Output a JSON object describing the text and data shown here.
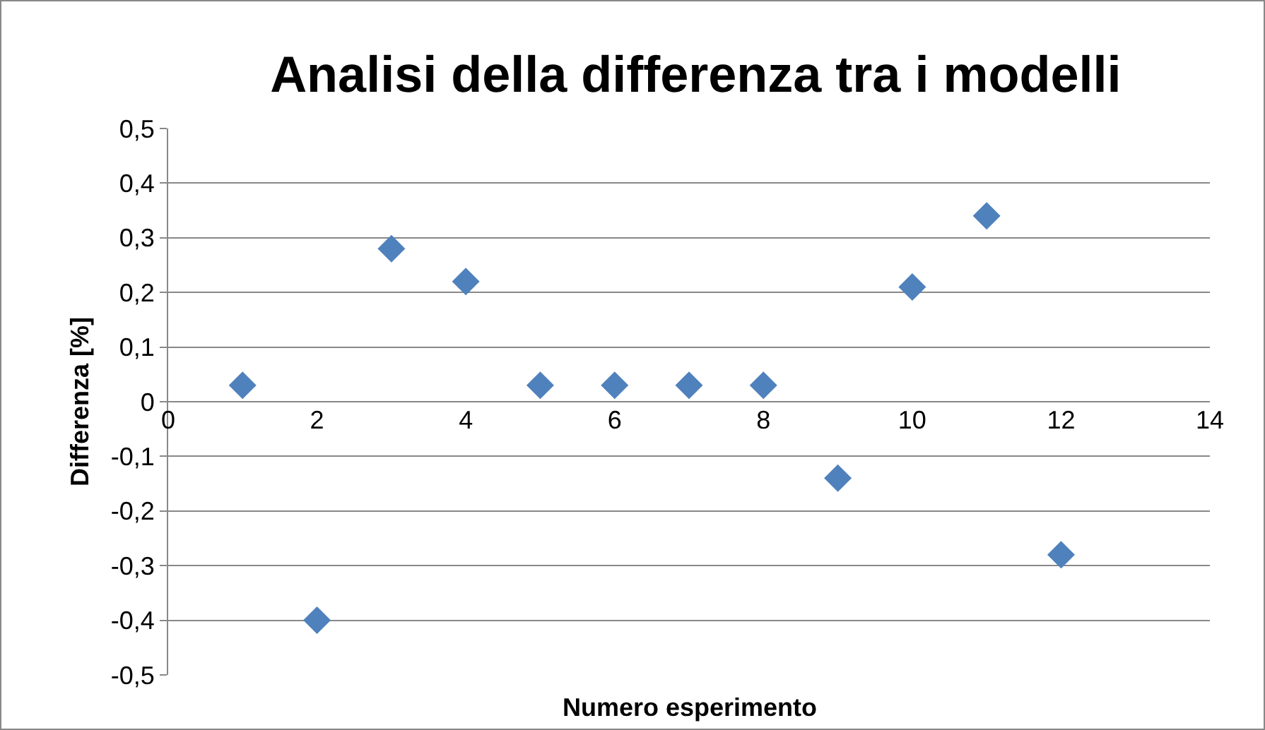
{
  "chart_data": {
    "type": "scatter",
    "title": "Analisi della differenza tra i modelli",
    "xlabel": "Numero esperimento",
    "ylabel": "Differenza [%]",
    "x": [
      1,
      2,
      3,
      4,
      5,
      6,
      7,
      8,
      9,
      10,
      11,
      12
    ],
    "series": [
      {
        "color": "#4f81bd",
        "values": [
          0.03,
          -0.4,
          0.28,
          0.22,
          0.03,
          0.03,
          0.03,
          0.03,
          -0.14,
          0.21,
          0.34,
          -0.28
        ]
      }
    ],
    "xlim": [
      0,
      14
    ],
    "xticks": [
      0,
      2,
      4,
      6,
      8,
      10,
      12,
      14
    ],
    "ylim": [
      -0.5,
      0.5
    ],
    "yticks": [
      {
        "value": -0.5,
        "label": "-0,5"
      },
      {
        "value": -0.4,
        "label": "-0,4"
      },
      {
        "value": -0.3,
        "label": "-0,3"
      },
      {
        "value": -0.2,
        "label": "-0,2"
      },
      {
        "value": -0.1,
        "label": "-0,1"
      },
      0,
      {
        "value": 0.1,
        "label": "0,1"
      },
      {
        "value": 0.2,
        "label": "0,2"
      },
      {
        "value": 0.3,
        "label": "0,3"
      },
      {
        "value": 0.4,
        "label": "0,4"
      },
      {
        "value": 0.5,
        "label": "0,5"
      }
    ],
    "grid": "y",
    "marker": "diamond"
  }
}
